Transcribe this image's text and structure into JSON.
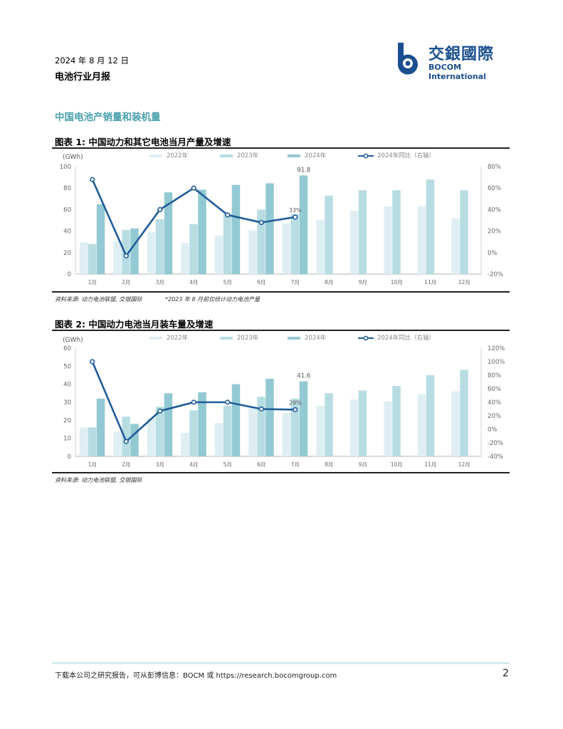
{
  "header": {
    "date": "2024 年 8 月 12 日",
    "title": "电池行业月报",
    "logo_cn": "交銀國際",
    "logo_en": "BOCOM International"
  },
  "section_title": "中国电池产销量和装机量",
  "figure1": {
    "caption": "图表 1: 中国动力和其它电池当月产量及增速",
    "source": "资料来源: 动力电池联盟, 交银国际",
    "note": "*2023 年 8 月前仅统计动力电池产量"
  },
  "figure2": {
    "caption": "图表 2: 中国动力电池当月装车量及增速",
    "source": "资料来源: 动力电池联盟, 交银国际"
  },
  "footer": {
    "text": "下载本公司之研究报告，可从彭博信息：BOCM 或 https://research.bocomgroup.com",
    "page_number": "2"
  },
  "colors": {
    "s2022": "#dfeef2",
    "s2023": "#b7dde3",
    "s2024": "#93c9d2",
    "line": "#1f5c99",
    "accent": "#4aa0ad"
  },
  "chart_data": [
    {
      "type": "bar",
      "ylabel": "(GWh)",
      "categories": [
        "1月",
        "2月",
        "3月",
        "4月",
        "5月",
        "6月",
        "7月",
        "8月",
        "9月",
        "10月",
        "11月",
        "12月"
      ],
      "ylim": [
        0,
        100
      ],
      "yticks": [
        "0",
        "20",
        "40",
        "60",
        "80",
        "100"
      ],
      "y2lim": [
        -20,
        80
      ],
      "y2ticks": [
        "-20%",
        "0%",
        "20%",
        "40%",
        "60%",
        "80%"
      ],
      "series": [
        {
          "name": "2022年",
          "values": [
            29.5,
            31,
            39,
            29,
            36,
            41,
            47,
            50,
            59,
            63,
            63,
            52
          ]
        },
        {
          "name": "2023年",
          "values": [
            28,
            41,
            51,
            46.5,
            56,
            60,
            56,
            73,
            78,
            78,
            88,
            78
          ]
        },
        {
          "name": "2024年",
          "values": [
            65,
            42.5,
            76,
            78.5,
            83,
            84.5,
            91.8,
            null,
            null,
            null,
            null,
            null
          ]
        }
      ],
      "line": {
        "name": "2024年同比（右轴）",
        "values": [
          68,
          -3,
          40,
          60,
          35,
          28,
          33,
          null,
          null,
          null,
          null,
          null
        ]
      },
      "labels": {
        "bar_label": "91.8",
        "line_label": "33%"
      }
    },
    {
      "type": "bar",
      "ylabel": "(GWh)",
      "categories": [
        "1月",
        "2月",
        "3月",
        "4月",
        "5月",
        "6月",
        "7月",
        "8月",
        "9月",
        "10月",
        "11月",
        "12月"
      ],
      "ylim": [
        0,
        60
      ],
      "yticks": [
        "0",
        "10",
        "20",
        "30",
        "40",
        "50",
        "60"
      ],
      "y2lim": [
        -40,
        120
      ],
      "y2ticks": [
        "-40%",
        "-20%",
        "0%",
        "20%",
        "40%",
        "60%",
        "80%",
        "100%",
        "120%"
      ],
      "series": [
        {
          "name": "2022年",
          "values": [
            16,
            13.5,
            21,
            13,
            18.5,
            27,
            24,
            28,
            31.5,
            30.5,
            34.5,
            36
          ]
        },
        {
          "name": "2023年",
          "values": [
            16,
            22,
            27.5,
            25.5,
            28,
            33,
            32,
            35,
            36.5,
            39,
            45,
            48
          ]
        },
        {
          "name": "2024年",
          "values": [
            32,
            18,
            35,
            35.5,
            40,
            43,
            41.6,
            null,
            null,
            null,
            null,
            null
          ]
        }
      ],
      "line": {
        "name": "2024年同比（右轴）",
        "values": [
          100,
          -18,
          27,
          40,
          40,
          30,
          29,
          null,
          null,
          null,
          null,
          null
        ]
      },
      "labels": {
        "bar_label": "41.6",
        "line_label": "29%"
      }
    }
  ]
}
